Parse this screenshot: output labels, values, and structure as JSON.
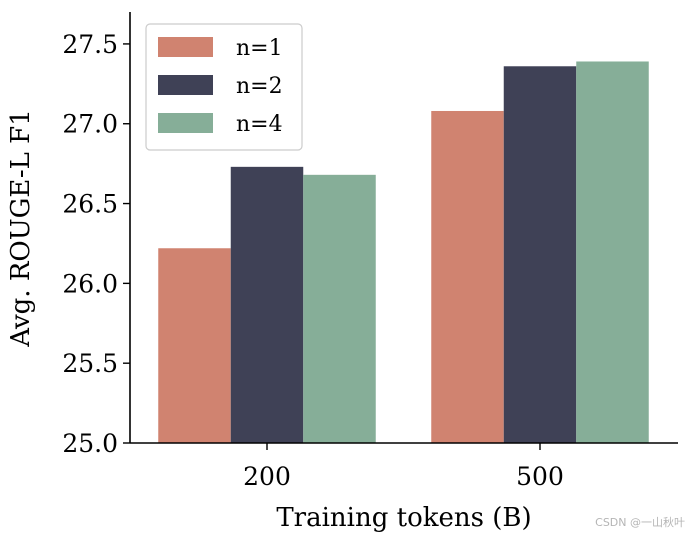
{
  "chart_data": {
    "type": "bar",
    "categories": [
      "200",
      "500"
    ],
    "series": [
      {
        "name": "n=1",
        "values": [
          26.22,
          27.08
        ],
        "color": "#d08370"
      },
      {
        "name": "n=2",
        "values": [
          26.73,
          27.36
        ],
        "color": "#3f4156"
      },
      {
        "name": "n=4",
        "values": [
          26.68,
          27.39
        ],
        "color": "#86ae98"
      }
    ],
    "xlabel": "Training tokens (B)",
    "ylabel": "Avg. ROUGE-L F1",
    "ylim": [
      25.0,
      27.7
    ],
    "yticks": [
      "25.0",
      "25.5",
      "26.0",
      "26.5",
      "27.0",
      "27.5"
    ],
    "grid": false,
    "legend_position": "top-left"
  },
  "watermark": "CSDN @一山秋叶"
}
